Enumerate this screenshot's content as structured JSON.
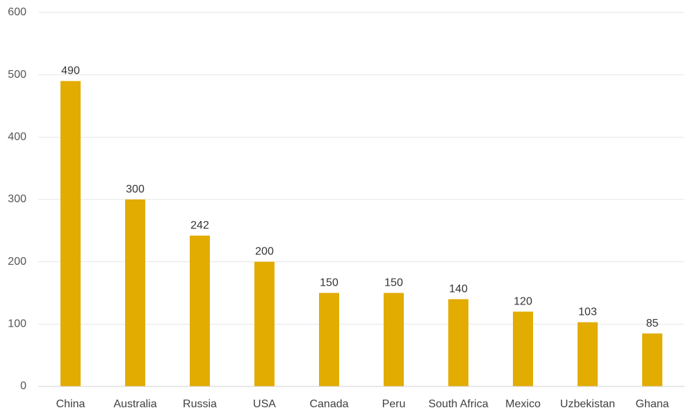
{
  "chart_data": {
    "type": "bar",
    "title": "",
    "xlabel": "",
    "ylabel": "",
    "categories": [
      "China",
      "Australia",
      "Russia",
      "USA",
      "Canada",
      "Peru",
      "South Africa",
      "Mexico",
      "Uzbekistan",
      "Ghana"
    ],
    "values": [
      490,
      300,
      242,
      200,
      150,
      150,
      140,
      120,
      103,
      85
    ],
    "ylim": [
      0,
      600
    ],
    "yticks": [
      0,
      100,
      200,
      300,
      400,
      500,
      600
    ],
    "grid": true,
    "legend": "none",
    "bar_color": "#E3AC00",
    "data_labels": true
  }
}
